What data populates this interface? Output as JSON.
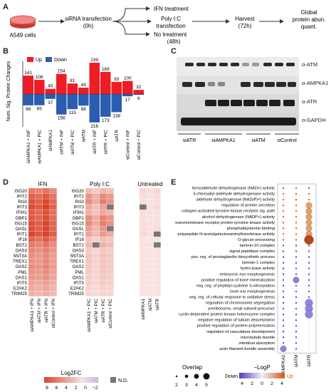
{
  "panel_a": {
    "letter": "A",
    "cells_label": "A549 cells",
    "transfection": [
      "siRNA transfection",
      "(0h)"
    ],
    "ifn": "IFN treatment",
    "polyic": [
      "Poly I:C",
      "transfection"
    ],
    "notreat": [
      "No treatment",
      "(48h)"
    ],
    "harvest": [
      "Harvest",
      "(72h)"
    ],
    "global": [
      "Global",
      "protein abun.",
      "quant."
    ],
    "colors": {
      "dish": "#e8534f",
      "arrow": "#333333"
    }
  },
  "panel_b": {
    "letter": "B",
    "ylabel": [
      "Num. Sig. Protein Changes"
    ],
    "legend": {
      "up": "Up",
      "down": "Down"
    },
    "colors": {
      "up": "#ee1c25",
      "down": "#2a5db0"
    }
  },
  "chart_data": {
    "type": "bar",
    "categories": [
      "siAMPKA1 + INF",
      "siAMPKA1 + PIC",
      "siAMPKA1",
      "siATM + INF",
      "siATM + PIC",
      "siATM",
      "siATR + INF",
      "siATR + PIC",
      "siATR",
      "siControl + INF",
      "siControl + PIC"
    ],
    "series": [
      {
        "name": "Up",
        "values": [
          141,
          108,
          40,
          154,
          81,
          49,
          239,
          169,
          93,
          100,
          32
        ]
      },
      {
        "name": "Down",
        "values": [
          86,
          85,
          37,
          156,
          115,
          88,
          216,
          173,
          138,
          17,
          6
        ]
      }
    ],
    "legend_position": "top-left",
    "grid": false
  },
  "panel_c": {
    "letter": "C",
    "rows": [
      "α-ATM",
      "α-AMPKA1",
      "α-ATR",
      "α-GAPDH"
    ],
    "lanes": [
      "siATR",
      "siAMPKA1",
      "siATM",
      "siControl"
    ]
  },
  "panel_d": {
    "letter": "D",
    "headers": [
      "IFN",
      "Poly I:C",
      "Untreated"
    ],
    "genes_ifn": [
      "ISG20",
      "IFIT2",
      "RIGI",
      "IFIT3",
      "IFIH1",
      "GBP1",
      "ISG15",
      "OASL",
      "IFIT1",
      "IF16",
      "BST2",
      "OAS3",
      "5NT3A",
      "TREX1",
      "OAS2",
      "PML",
      "OAS1",
      "IFIT5",
      "E2AK2",
      "TRIM25"
    ],
    "genes_pic": [
      "ISG20",
      "IFIT2",
      "RIGI",
      "IFIT3",
      "IFIH1",
      "GBP1",
      "ISG15",
      "OASL",
      "IFIT1",
      "IF16",
      "BST2",
      "OAS3",
      "5NT3A",
      "TREX1",
      "OAS2",
      "PML",
      "OAS1",
      "IFIT5",
      "E2AK2",
      "TRIM25"
    ],
    "cols_ifn": [
      "siAMPKA1 + IFN",
      "siATM + IFN",
      "siATR + IFN",
      "siControl + IFN"
    ],
    "cols_pic": [
      "siAMPKA1 + PIC",
      "siATM + PIC",
      "siATR + PIC",
      "siControl + PIC"
    ],
    "cols_un": [
      "siAMPKA1",
      "siATM",
      "siATR"
    ],
    "legend_title": "Log2FC",
    "legend_ticks": [
      "8",
      "6",
      "4",
      "2",
      "0",
      "−2"
    ],
    "nd_label": "N.D.",
    "colors": {
      "nd": "#777777",
      "hi": "#d9442a",
      "lo": "#f6dfe0",
      "neg": "#c8b7e0"
    }
  },
  "panel_e": {
    "letter": "E",
    "terms": [
      "benzaldehyde dehydrogenase (NAD+) activity",
      "3-chloroallyl aldehyde dehydrogenase activity",
      "aldehyde dehydrogenase [NAD(P)+] activity",
      "regulation of protein secretion",
      "collagen-activated tyrosine kinase receptor sig. path",
      "alcohol dehydrogenase (NADP+) activity",
      "transmembrane receptor protein tyrosine kinase activity",
      "phosphatidylserine binding",
      "polypeptide N-acetylgalactosaminyltransferase activity",
      "O-glycan processing",
      "laminin-10 complex",
      "signal peptidase complex",
      "pos. reg. of prostaglandin biosynthetic process",
      "laminin-1 complex",
      "hydro-lyase activity",
      "embryonic eye morphogenesis",
      "positive regulation of bone mineralization",
      "neg. reg. of peptidyl-cysteine S-nitrosylation",
      "inner ear morphogenesis",
      "neg. reg. of cellular response to oxidative stress",
      "regulation of chromosome segregation",
      "preribosome, small subunit precursor",
      "cyclin-dependent protein kinase holoenzyme complex",
      "negative regulation of tubulin deacetylation",
      "positive regulation of protein polymerization",
      "regulation of vasculature development",
      "microtubule bundle",
      "intestinal absorption",
      "actin filament bundle assembly"
    ],
    "cols": [
      "siAMPKA1",
      "siATM",
      "siATR"
    ],
    "overlap_title": "Overlap",
    "overlap_ticks": [
      "2",
      "3",
      "4",
      "5"
    ],
    "logp_title": "−LogP",
    "logp_down": "Down",
    "logp_up": "Up",
    "logp_ticks": [
      "4",
      "2",
      "0",
      "2",
      "4"
    ],
    "colors": {
      "down": "#5b4fc4",
      "up": "#e0662a"
    }
  }
}
